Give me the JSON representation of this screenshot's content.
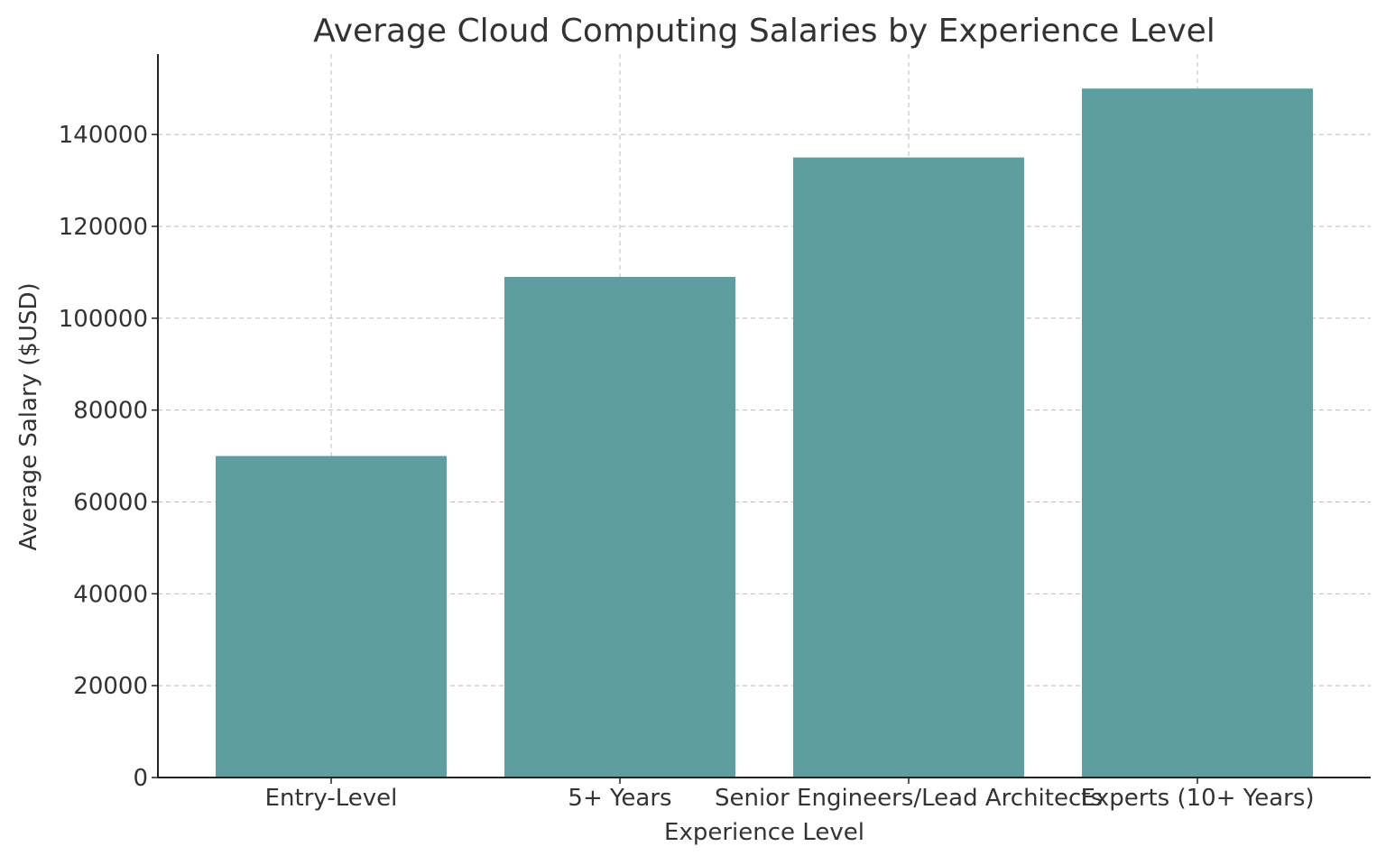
{
  "chart_data": {
    "type": "bar",
    "title": "Average Cloud Computing Salaries by Experience Level",
    "xlabel": "Experience Level",
    "ylabel": "Average Salary ($USD)",
    "categories": [
      "Entry-Level",
      "5+ Years",
      "Senior Engineers/Lead Architects",
      "Experts (10+ Years)"
    ],
    "values": [
      70000,
      109000,
      135000,
      150000
    ],
    "ylim": [
      0,
      157500
    ],
    "yticks": [
      0,
      20000,
      40000,
      60000,
      80000,
      100000,
      120000,
      140000
    ],
    "grid": true,
    "bar_color": "#5f9ea0"
  }
}
